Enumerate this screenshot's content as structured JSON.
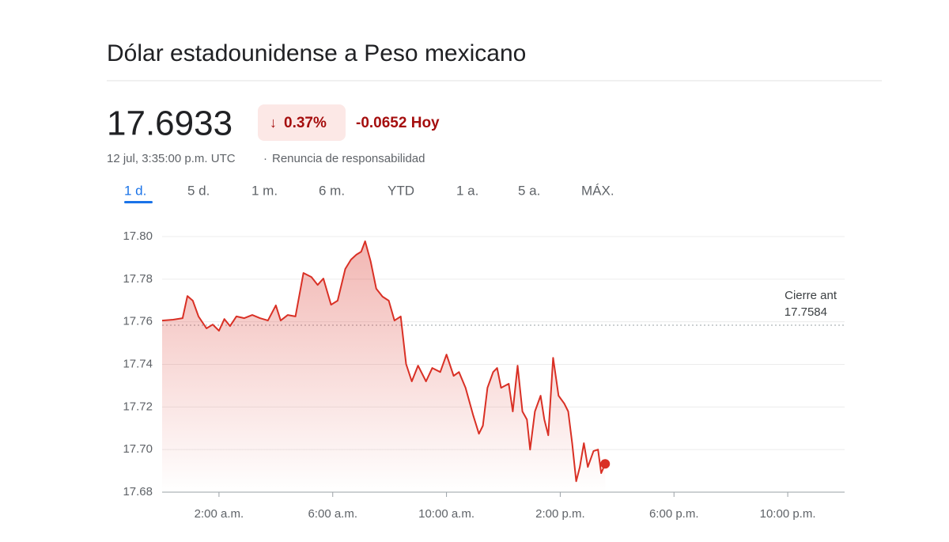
{
  "header": {
    "title": "Dólar estadounidense a Peso mexicano",
    "price": "17.6933",
    "change_pct": "0.37%",
    "change_abs": "-0.0652 Hoy",
    "timestamp": "12 jul, 3:35:00 p.m. UTC",
    "disclaimer": "Renuncia de responsabilidad",
    "tabs": [
      "1 d.",
      "5 d.",
      "1 m.",
      "6 m.",
      "YTD",
      "1 a.",
      "5 a.",
      "MÁX."
    ]
  },
  "chart_data": {
    "type": "line",
    "color": "#d93025",
    "x": [
      0.0,
      0.39,
      0.72,
      0.89,
      1.08,
      1.28,
      1.56,
      1.78,
      2.0,
      2.19,
      2.39,
      2.61,
      2.89,
      3.17,
      3.44,
      3.72,
      4.0,
      4.17,
      4.42,
      4.69,
      4.97,
      5.25,
      5.47,
      5.67,
      5.94,
      6.17,
      6.44,
      6.64,
      6.83,
      7.0,
      7.14,
      7.33,
      7.53,
      7.75,
      7.97,
      8.17,
      8.39,
      8.58,
      8.78,
      9.0,
      9.28,
      9.5,
      9.78,
      10.0,
      10.25,
      10.44,
      10.67,
      10.94,
      11.14,
      11.28,
      11.44,
      11.64,
      11.78,
      11.92,
      12.19,
      12.33,
      12.5,
      12.67,
      12.83,
      12.94,
      13.11,
      13.31,
      13.44,
      13.58,
      13.75,
      13.94,
      14.14,
      14.28,
      14.42,
      14.56,
      14.69,
      14.83,
      14.97,
      15.17,
      15.33,
      15.44,
      15.58
    ],
    "values": [
      17.7606,
      17.761,
      17.7617,
      17.7721,
      17.7699,
      17.7625,
      17.7569,
      17.7587,
      17.7558,
      17.7613,
      17.758,
      17.7625,
      17.7617,
      17.7632,
      17.7617,
      17.7606,
      17.7677,
      17.7606,
      17.7632,
      17.7625,
      17.7829,
      17.781,
      17.7773,
      17.7803,
      17.768,
      17.7699,
      17.7848,
      17.7892,
      17.7915,
      17.7929,
      17.7978,
      17.7885,
      17.7755,
      17.7718,
      17.7699,
      17.7606,
      17.7625,
      17.7402,
      17.732,
      17.7394,
      17.732,
      17.7383,
      17.7364,
      17.7446,
      17.7346,
      17.7364,
      17.729,
      17.716,
      17.7074,
      17.7112,
      17.729,
      17.7364,
      17.7383,
      17.729,
      17.7309,
      17.7179,
      17.7394,
      17.7179,
      17.7141,
      17.7,
      17.7179,
      17.7253,
      17.7141,
      17.7067,
      17.7431,
      17.7253,
      17.7216,
      17.7179,
      17.703,
      17.6851,
      17.6918,
      17.703,
      17.6918,
      17.6993,
      17.7,
      17.6889,
      17.6933
    ],
    "xlim": [
      0,
      24
    ],
    "xticks": [
      {
        "value": 2,
        "label": "2:00 a.m."
      },
      {
        "value": 6,
        "label": "6:00 a.m."
      },
      {
        "value": 10,
        "label": "10:00 a.m."
      },
      {
        "value": 14,
        "label": "2:00 p.m."
      },
      {
        "value": 18,
        "label": "6:00 p.m."
      },
      {
        "value": 22,
        "label": "10:00 p.m."
      }
    ],
    "ylim": [
      17.68,
      17.8
    ],
    "yticks": [
      17.68,
      {
        "value": 17.7,
        "label": "17.70"
      },
      17.72,
      17.74,
      17.76,
      17.78,
      {
        "value": 17.8,
        "label": "17.80"
      }
    ],
    "grid": true,
    "reference_line": {
      "label": "Cierre ant",
      "value": 17.7584
    }
  }
}
